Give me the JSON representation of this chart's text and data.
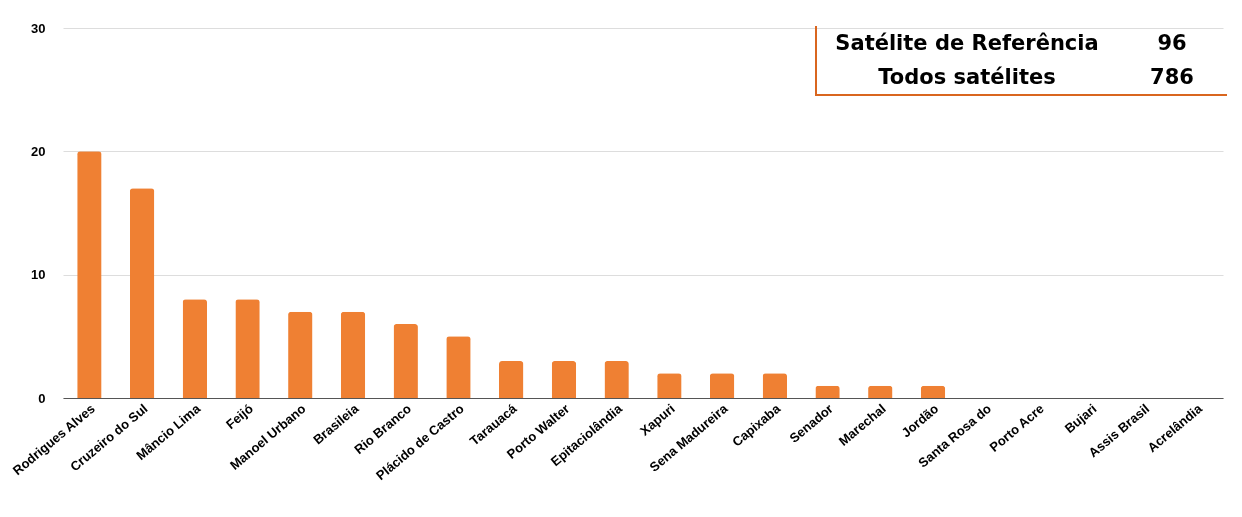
{
  "chart_data": {
    "type": "bar",
    "categories": [
      "Rodrigues Alves",
      "Cruzeiro do Sul",
      "Mâncio Lima",
      "Feijó",
      "Manoel Urbano",
      "Brasileia",
      "Rio Branco",
      "Plácido de Castro",
      "Tarauacá",
      "Porto Walter",
      "Epitaciolândia",
      "Xapuri",
      "Sena Madureira",
      "Capixaba",
      "Senador",
      "Marechal",
      "Jordão",
      "Santa Rosa do",
      "Porto Acre",
      "Bujari",
      "Assis Brasil",
      "Acrelândia"
    ],
    "values": [
      20,
      17,
      8,
      8,
      7,
      7,
      6,
      5,
      3,
      3,
      3,
      2,
      2,
      2,
      1,
      1,
      1,
      0,
      0,
      0,
      0,
      0
    ],
    "color": "#ef8033",
    "ylim": [
      0,
      30
    ],
    "yticks": [
      0,
      10,
      20,
      30
    ],
    "grid": "y",
    "annotations": [
      "Satélite de Referência",
      "96",
      "Todos satélites",
      "786"
    ]
  }
}
